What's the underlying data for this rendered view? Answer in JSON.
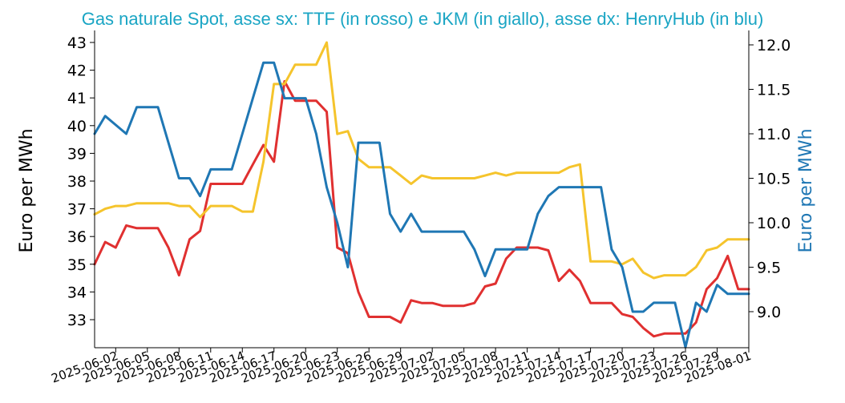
{
  "chart_data": {
    "type": "line",
    "title": "Gas naturale Spot, asse sx: TTF (in rosso) e JKM (in giallo), asse dx: HenryHub (in blu)",
    "ylabel_left": "Euro per MWh",
    "ylabel_right": "Euro per MWh",
    "grid": false,
    "legend": "none",
    "ylim_left": [
      32.1,
      43.6
    ],
    "ylim_right": [
      8.6,
      12.2
    ],
    "yticks_left": [
      33,
      34,
      35,
      36,
      37,
      38,
      39,
      40,
      41,
      42,
      43
    ],
    "yticks_right": [
      "9.0",
      "9.5",
      "10.0",
      "10.5",
      "11.0",
      "11.5",
      "12.0"
    ],
    "x_tick_labels": [
      "2025-06-02",
      "2025-06-05",
      "2025-06-08",
      "2025-06-11",
      "2025-06-14",
      "2025-06-17",
      "2025-06-20",
      "2025-06-23",
      "2025-06-26",
      "2025-06-29",
      "2025-07-02",
      "2025-07-05",
      "2025-07-08",
      "2025-07-11",
      "2025-07-14",
      "2025-07-17",
      "2025-07-20",
      "2025-07-23",
      "2025-07-26",
      "2025-07-29",
      "2025-08-01"
    ],
    "x": [
      "2025-05-31",
      "2025-06-01",
      "2025-06-02",
      "2025-06-03",
      "2025-06-04",
      "2025-06-05",
      "2025-06-06",
      "2025-06-07",
      "2025-06-08",
      "2025-06-09",
      "2025-06-10",
      "2025-06-11",
      "2025-06-12",
      "2025-06-13",
      "2025-06-14",
      "2025-06-15",
      "2025-06-16",
      "2025-06-17",
      "2025-06-18",
      "2025-06-19",
      "2025-06-20",
      "2025-06-21",
      "2025-06-22",
      "2025-06-23",
      "2025-06-24",
      "2025-06-25",
      "2025-06-26",
      "2025-06-27",
      "2025-06-28",
      "2025-06-29",
      "2025-06-30",
      "2025-07-01",
      "2025-07-02",
      "2025-07-03",
      "2025-07-04",
      "2025-07-05",
      "2025-07-06",
      "2025-07-07",
      "2025-07-08",
      "2025-07-09",
      "2025-07-10",
      "2025-07-11",
      "2025-07-12",
      "2025-07-13",
      "2025-07-14",
      "2025-07-15",
      "2025-07-16",
      "2025-07-17",
      "2025-07-18",
      "2025-07-19",
      "2025-07-20",
      "2025-07-21",
      "2025-07-22",
      "2025-07-23",
      "2025-07-24",
      "2025-07-25",
      "2025-07-26",
      "2025-07-27",
      "2025-07-28",
      "2025-07-29",
      "2025-07-30",
      "2025-07-31",
      "2025-08-01"
    ],
    "series": [
      {
        "name": "TTF",
        "axis": "left",
        "color": "#e03030",
        "values": [
          35.0,
          35.8,
          35.6,
          36.4,
          36.3,
          36.3,
          36.3,
          35.6,
          34.6,
          35.9,
          36.2,
          37.9,
          37.9,
          37.9,
          37.9,
          38.6,
          39.3,
          38.7,
          41.6,
          40.9,
          40.9,
          40.9,
          40.5,
          35.6,
          35.4,
          34.0,
          33.1,
          33.1,
          33.1,
          32.9,
          33.7,
          33.6,
          33.6,
          33.5,
          33.5,
          33.5,
          33.6,
          34.2,
          34.3,
          35.2,
          35.6,
          35.6,
          35.6,
          35.5,
          34.4,
          34.8,
          34.4,
          33.6,
          33.6,
          33.6,
          33.2,
          33.1,
          32.7,
          32.4,
          32.5,
          32.5,
          32.5,
          32.9,
          34.1,
          34.5,
          35.3,
          34.1,
          34.1
        ]
      },
      {
        "name": "JKM",
        "axis": "left",
        "color": "#f5c42c",
        "values": [
          36.8,
          37.0,
          37.1,
          37.1,
          37.2,
          37.2,
          37.2,
          37.2,
          37.1,
          37.1,
          36.7,
          37.1,
          37.1,
          37.1,
          36.9,
          36.9,
          38.7,
          41.5,
          41.5,
          42.2,
          42.2,
          42.2,
          43.0,
          39.7,
          39.8,
          38.8,
          38.5,
          38.5,
          38.5,
          38.2,
          37.9,
          38.2,
          38.1,
          38.1,
          38.1,
          38.1,
          38.1,
          38.2,
          38.3,
          38.2,
          38.3,
          38.3,
          38.3,
          38.3,
          38.3,
          38.5,
          38.6,
          35.1,
          35.1,
          35.1,
          35.0,
          35.2,
          34.7,
          34.5,
          34.6,
          34.6,
          34.6,
          34.9,
          35.5,
          35.6,
          35.9,
          35.9,
          35.9
        ]
      },
      {
        "name": "HenryHub",
        "axis": "right",
        "color": "#1f77b4",
        "values": [
          11.0,
          11.2,
          11.1,
          11.0,
          11.3,
          11.3,
          11.3,
          10.9,
          10.5,
          10.5,
          10.3,
          10.6,
          10.6,
          10.6,
          11.0,
          11.4,
          11.8,
          11.8,
          11.4,
          11.4,
          11.4,
          11.0,
          10.4,
          10.0,
          9.5,
          10.9,
          10.9,
          10.9,
          10.1,
          9.9,
          10.1,
          9.9,
          9.9,
          9.9,
          9.9,
          9.9,
          9.7,
          9.4,
          9.7,
          9.7,
          9.7,
          9.7,
          10.1,
          10.3,
          10.4,
          10.4,
          10.4,
          10.4,
          10.4,
          9.7,
          9.5,
          9.0,
          9.0,
          9.1,
          9.1,
          9.1,
          8.6,
          9.1,
          9.0,
          9.3,
          9.2,
          9.2,
          9.2
        ]
      }
    ]
  }
}
